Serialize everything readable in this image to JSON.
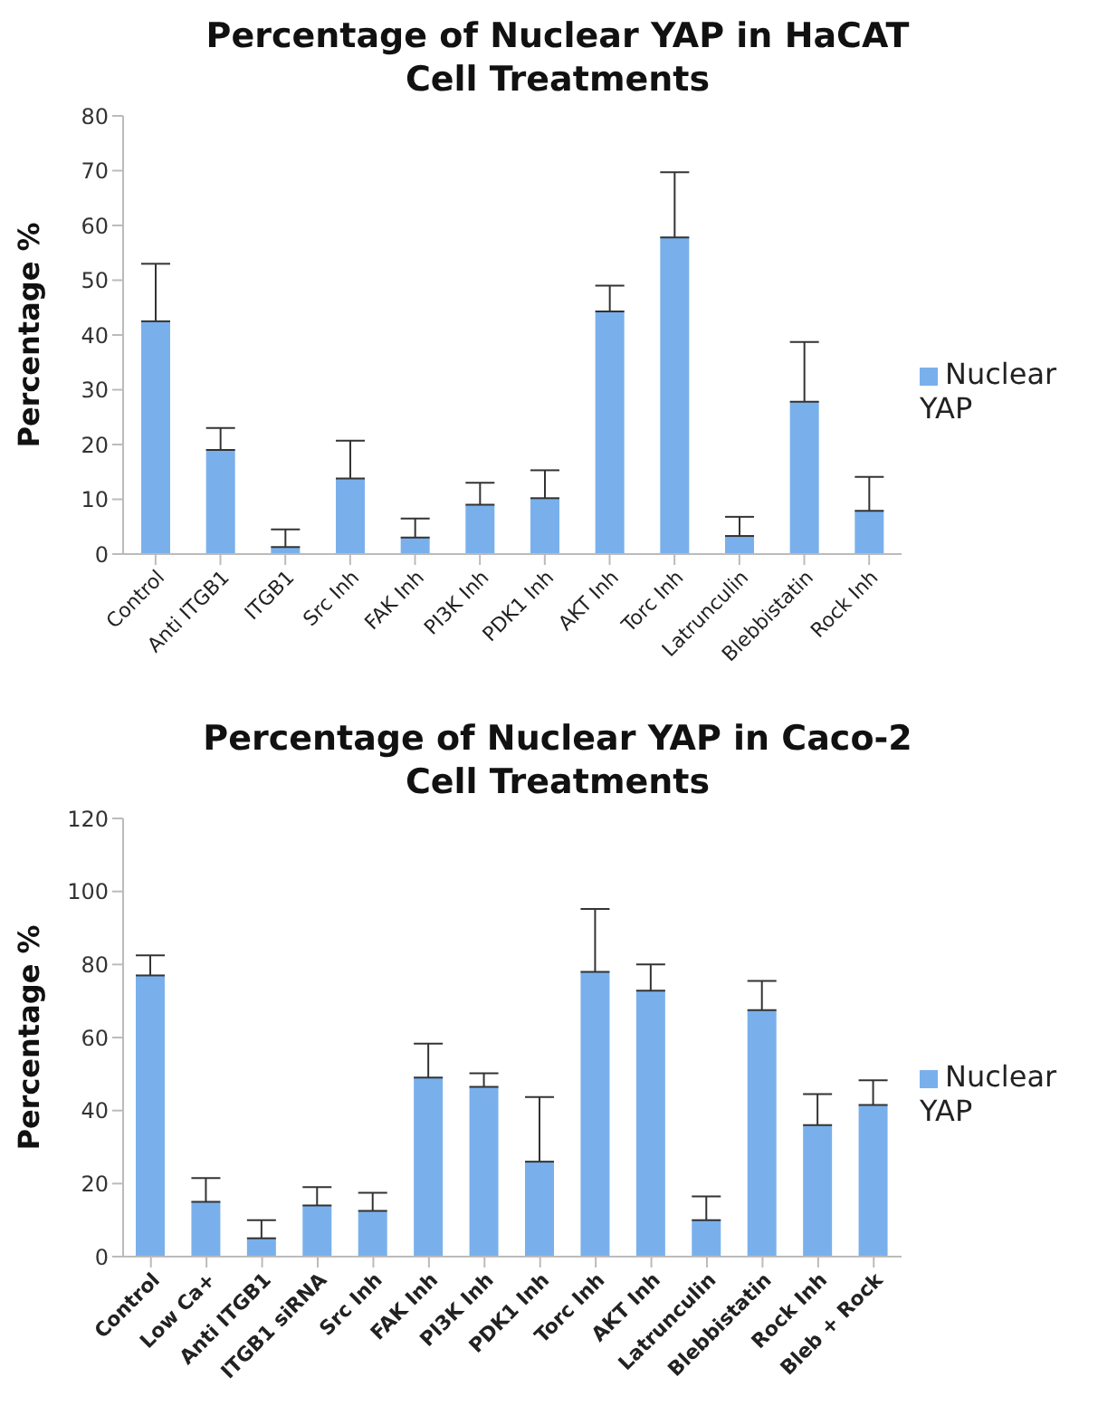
{
  "chart_data": [
    {
      "type": "bar",
      "title": "Percentage of Nuclear YAP in HaCAT Cell Treatments",
      "ylabel": "Percentage %",
      "categories": [
        "Control",
        "Anti ITGB1",
        "ITGB1",
        "Src Inh",
        "FAK Inh",
        "PI3K Inh",
        "PDK1 Inh",
        "AKT Inh",
        "Torc Inh",
        "Latrunculin",
        "Blebbistatin",
        "Rock Inh"
      ],
      "series": [
        {
          "name": "Nuclear YAP",
          "color": "#79b0ec",
          "values": [
            42.5,
            19,
            1.3,
            13.8,
            3,
            9,
            10.2,
            44.3,
            57.8,
            3.3,
            27.8,
            7.9
          ],
          "errors": [
            [
              42.5,
              53
            ],
            [
              19,
              23
            ],
            [
              1.3,
              4.5
            ],
            [
              13.8,
              20.7
            ],
            [
              3,
              6.5
            ],
            [
              9,
              13
            ],
            [
              10.2,
              15.3
            ],
            [
              44.3,
              49
            ],
            [
              57.8,
              69.7
            ],
            [
              3.3,
              6.8
            ],
            [
              27.8,
              38.7
            ],
            [
              7.9,
              14.1
            ]
          ]
        }
      ],
      "ylim": [
        0,
        80
      ],
      "yticks": [
        0,
        10,
        20,
        30,
        40,
        50,
        60,
        70,
        80
      ],
      "grid": false,
      "legend": "right"
    },
    {
      "type": "bar",
      "title": "Percentage of Nuclear YAP in Caco-2 Cell Treatments",
      "ylabel": "Percentage %",
      "categories": [
        "Control",
        "Low Ca+",
        "Anti ITGB1",
        "ITGB1 siRNA",
        "Src Inh",
        "FAK Inh",
        "PI3K Inh",
        "PDK1 Inh",
        "Torc Inh",
        "AKT Inh",
        "Latrunculin",
        "Blebbistatin",
        "Rock Inh",
        "Bleb + Rock"
      ],
      "series": [
        {
          "name": "Nuclear YAP",
          "color": "#79b0ec",
          "values": [
            77,
            15,
            5,
            14,
            12.5,
            49,
            46.5,
            26,
            78,
            72.8,
            10,
            67.5,
            36,
            41.5
          ],
          "errors": [
            [
              77,
              82.5
            ],
            [
              15,
              21.5
            ],
            [
              5,
              10
            ],
            [
              14,
              19
            ],
            [
              12.5,
              17.5
            ],
            [
              49,
              58.3
            ],
            [
              46.5,
              50.2
            ],
            [
              26,
              43.7
            ],
            [
              78,
              95.2
            ],
            [
              72.8,
              80
            ],
            [
              10,
              16.5
            ],
            [
              67.5,
              75.5
            ],
            [
              36,
              44.5
            ],
            [
              41.5,
              48.3
            ]
          ]
        }
      ],
      "ylim": [
        0,
        120
      ],
      "yticks": [
        0,
        20,
        40,
        60,
        80,
        100,
        120
      ],
      "grid": false,
      "legend": "right"
    }
  ]
}
